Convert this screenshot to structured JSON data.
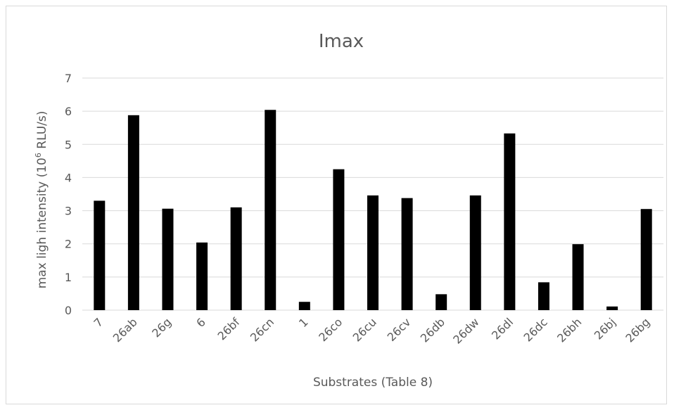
{
  "chart_data": {
    "type": "bar",
    "title": "Imax",
    "xlabel": "Substrates (Table 8)",
    "ylabel_main": "max ligh intensity (10",
    "ylabel_sup": "6",
    "ylabel_end": " RLU/s)",
    "ylim": [
      0,
      7
    ],
    "yticks": [
      0,
      1,
      2,
      3,
      4,
      5,
      6,
      7
    ],
    "grid": true,
    "categories": [
      "7",
      "26ab",
      "26g",
      "6",
      "26bf",
      "26cn",
      "1",
      "26co",
      "26cu",
      "26cv",
      "26db",
      "26dw",
      "26dl",
      "26dc",
      "26bh",
      "26bj",
      "26bg"
    ],
    "values": [
      3.3,
      5.88,
      3.06,
      2.04,
      3.1,
      6.04,
      0.25,
      4.25,
      3.46,
      3.38,
      0.48,
      3.46,
      5.33,
      0.84,
      1.99,
      0.11,
      3.05
    ],
    "bar_color": "#000000",
    "grid_color": "#d9d9d9"
  }
}
